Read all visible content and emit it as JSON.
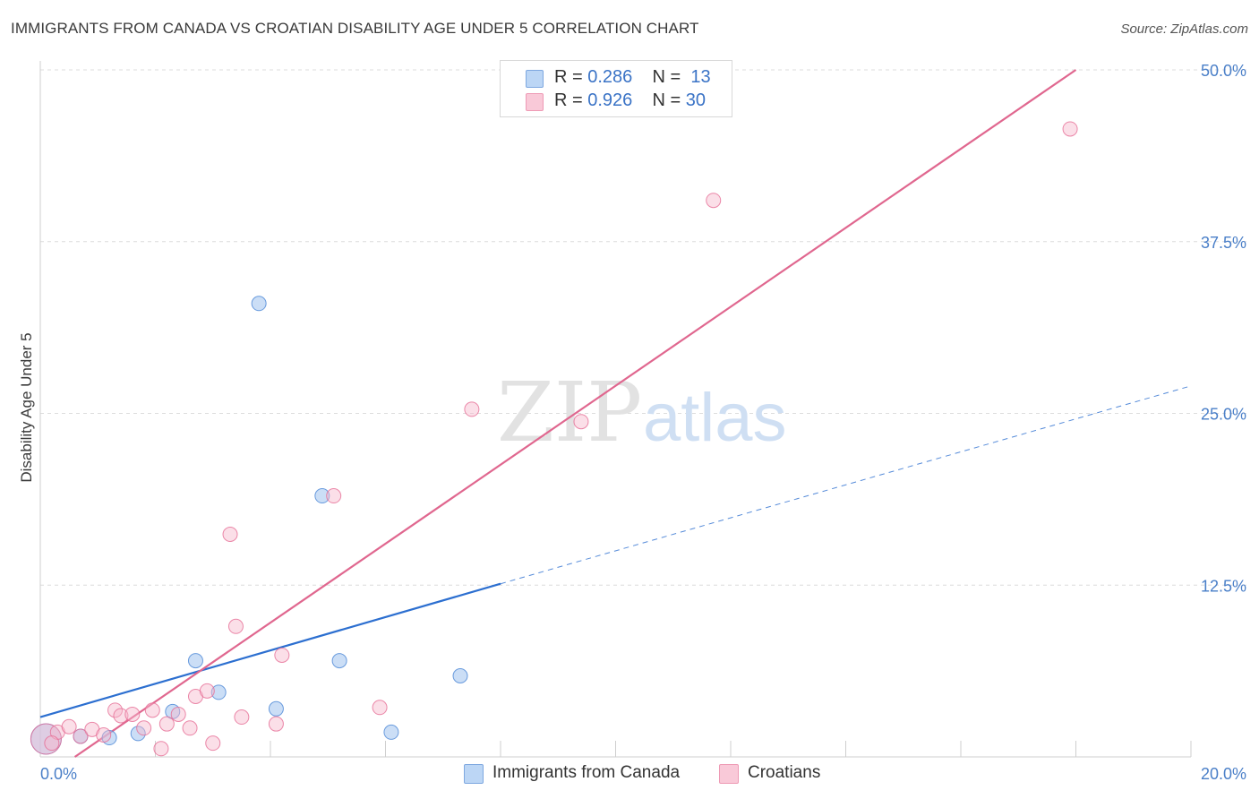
{
  "header": {
    "title": "IMMIGRANTS FROM CANADA VS CROATIAN DISABILITY AGE UNDER 5 CORRELATION CHART",
    "source": "Source: ZipAtlas.com"
  },
  "watermark": {
    "zip": "ZIP",
    "atlas": "atlas"
  },
  "legend": {
    "rows": [
      {
        "r_label": "R = ",
        "r_value": "0.286",
        "n_label": "N = ",
        "n_value": "13",
        "color": "#a8c8f0"
      },
      {
        "r_label": "R = ",
        "r_value": "0.926",
        "n_label": "N = ",
        "n_value": "30",
        "color": "#f7b7cb"
      }
    ]
  },
  "bottom_legend": [
    {
      "label": "Immigrants from Canada",
      "color": "#a8c8f0"
    },
    {
      "label": "Croatians",
      "color": "#f7b7cb"
    }
  ],
  "chart_data": {
    "type": "scatter",
    "title": "IMMIGRANTS FROM CANADA VS CROATIAN DISABILITY AGE UNDER 5 CORRELATION CHART",
    "xlabel": "",
    "ylabel": "Disability Age Under 5",
    "xlim": [
      0,
      20
    ],
    "ylim": [
      0,
      50
    ],
    "x_tick_labels": [
      "0.0%",
      "20.0%"
    ],
    "y_ticks": [
      12.5,
      25.0,
      37.5,
      50.0
    ],
    "y_tick_labels": [
      "12.5%",
      "25.0%",
      "37.5%",
      "50.0%"
    ],
    "grid": true,
    "legend_position": "top-center",
    "series": [
      {
        "name": "Immigrants from Canada",
        "color": "#4a86d6",
        "fill": "#a8c8f0",
        "points": [
          {
            "x": 0.1,
            "y": 1.3,
            "big": true
          },
          {
            "x": 0.7,
            "y": 1.5
          },
          {
            "x": 1.2,
            "y": 1.4
          },
          {
            "x": 1.7,
            "y": 1.7
          },
          {
            "x": 2.3,
            "y": 3.3
          },
          {
            "x": 2.7,
            "y": 7.0
          },
          {
            "x": 3.1,
            "y": 4.7
          },
          {
            "x": 3.8,
            "y": 33.0
          },
          {
            "x": 4.1,
            "y": 3.5
          },
          {
            "x": 4.9,
            "y": 19.0
          },
          {
            "x": 5.2,
            "y": 7.0
          },
          {
            "x": 6.1,
            "y": 1.8
          },
          {
            "x": 7.3,
            "y": 5.9
          }
        ],
        "trend": {
          "x1": 0,
          "y1": 2.9,
          "x2": 8,
          "y2": 12.6,
          "dashed_to_x": 20,
          "dashed_to_y": 27.0,
          "color": "#2c6fd0"
        }
      },
      {
        "name": "Croatians",
        "color": "#e66d95",
        "fill": "#f7b7cb",
        "points": [
          {
            "x": 0.1,
            "y": 1.3,
            "big": true
          },
          {
            "x": 0.3,
            "y": 1.8
          },
          {
            "x": 0.5,
            "y": 2.2
          },
          {
            "x": 0.7,
            "y": 1.5
          },
          {
            "x": 0.9,
            "y": 2.0
          },
          {
            "x": 1.1,
            "y": 1.6
          },
          {
            "x": 1.3,
            "y": 3.4
          },
          {
            "x": 1.4,
            "y": 3.0
          },
          {
            "x": 1.6,
            "y": 3.1
          },
          {
            "x": 1.8,
            "y": 2.1
          },
          {
            "x": 1.95,
            "y": 3.4
          },
          {
            "x": 2.1,
            "y": 0.6
          },
          {
            "x": 2.2,
            "y": 2.4
          },
          {
            "x": 2.4,
            "y": 3.1
          },
          {
            "x": 2.6,
            "y": 2.1
          },
          {
            "x": 2.7,
            "y": 4.4
          },
          {
            "x": 2.9,
            "y": 4.8
          },
          {
            "x": 3.0,
            "y": 1.0
          },
          {
            "x": 3.3,
            "y": 16.2
          },
          {
            "x": 3.4,
            "y": 9.5
          },
          {
            "x": 3.5,
            "y": 2.9
          },
          {
            "x": 4.1,
            "y": 2.4
          },
          {
            "x": 4.2,
            "y": 7.4
          },
          {
            "x": 5.1,
            "y": 19.0
          },
          {
            "x": 5.9,
            "y": 3.6
          },
          {
            "x": 7.5,
            "y": 25.3
          },
          {
            "x": 9.4,
            "y": 24.4
          },
          {
            "x": 11.7,
            "y": 40.5
          },
          {
            "x": 17.9,
            "y": 45.7
          },
          {
            "x": 0.2,
            "y": 1.0
          }
        ],
        "trend": {
          "x1": 0.6,
          "y1": 0.0,
          "x2": 18.0,
          "y2": 50.0,
          "color": "#e0678f"
        }
      }
    ]
  }
}
